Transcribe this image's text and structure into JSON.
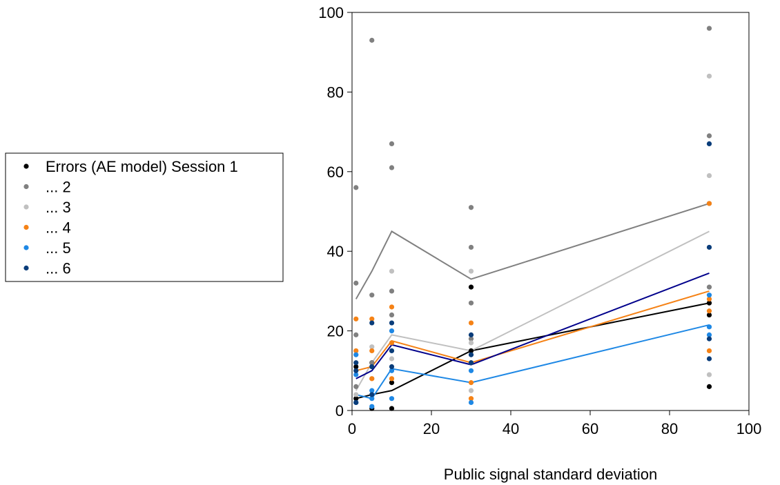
{
  "chart_data": {
    "type": "scatter",
    "title": "",
    "xlabel": "Public signal standard deviation",
    "ylabel": "",
    "xlim": [
      0,
      100
    ],
    "ylim": [
      0,
      100
    ],
    "x_ticks": [
      0,
      20,
      40,
      60,
      80,
      100
    ],
    "y_ticks": [
      0,
      20,
      40,
      60,
      80,
      100
    ],
    "grid": false,
    "legend_position": "left",
    "legend": [
      "Errors (AE model) Session 1",
      "... 2",
      "... 3",
      "... 4",
      "... 5",
      "... 6"
    ],
    "series": [
      {
        "name": "Errors (AE model) Session 1",
        "color": "#000000",
        "line": {
          "x": [
            1,
            5,
            10,
            30,
            90
          ],
          "y": [
            3,
            4,
            5,
            15,
            27
          ]
        },
        "points": [
          [
            1,
            3
          ],
          [
            1,
            11
          ],
          [
            5,
            0.5
          ],
          [
            5,
            12
          ],
          [
            10,
            0.5
          ],
          [
            10,
            7
          ],
          [
            30,
            15
          ],
          [
            30,
            31
          ],
          [
            90,
            6
          ],
          [
            90,
            24
          ],
          [
            90,
            27
          ]
        ]
      },
      {
        "name": "... 2",
        "color": "#808080",
        "line": {
          "x": [
            1,
            5,
            10,
            30,
            90
          ],
          "y": [
            28,
            35,
            45,
            33,
            52
          ]
        },
        "points": [
          [
            1,
            56
          ],
          [
            1,
            32
          ],
          [
            1,
            19
          ],
          [
            1,
            6
          ],
          [
            5,
            93
          ],
          [
            5,
            29
          ],
          [
            5,
            12
          ],
          [
            10,
            67
          ],
          [
            10,
            61
          ],
          [
            10,
            30
          ],
          [
            10,
            24
          ],
          [
            30,
            51
          ],
          [
            30,
            41
          ],
          [
            30,
            27
          ],
          [
            30,
            18
          ],
          [
            90,
            96
          ],
          [
            90,
            69
          ],
          [
            90,
            52
          ],
          [
            90,
            31
          ]
        ]
      },
      {
        "name": "... 3",
        "color": "#c0c0c0",
        "line": {
          "x": [
            1,
            5,
            10,
            30,
            90
          ],
          "y": [
            5,
            12,
            19,
            15,
            45
          ]
        },
        "points": [
          [
            1,
            4
          ],
          [
            5,
            16
          ],
          [
            5,
            8
          ],
          [
            10,
            35
          ],
          [
            10,
            13
          ],
          [
            30,
            35
          ],
          [
            30,
            17
          ],
          [
            30,
            5
          ],
          [
            90,
            84
          ],
          [
            90,
            59
          ],
          [
            90,
            9
          ]
        ]
      },
      {
        "name": "... 4",
        "color": "#f58216",
        "line": {
          "x": [
            1,
            5,
            10,
            30,
            90
          ],
          "y": [
            10,
            11,
            17.5,
            12,
            30
          ]
        },
        "points": [
          [
            1,
            23
          ],
          [
            1,
            15
          ],
          [
            5,
            23
          ],
          [
            5,
            15
          ],
          [
            5,
            8
          ],
          [
            10,
            26
          ],
          [
            10,
            17
          ],
          [
            10,
            8
          ],
          [
            30,
            22
          ],
          [
            30,
            12
          ],
          [
            30,
            7
          ],
          [
            30,
            3
          ],
          [
            90,
            52
          ],
          [
            90,
            28
          ],
          [
            90,
            25
          ],
          [
            90,
            15
          ]
        ]
      },
      {
        "name": "... 5",
        "color": "#1e88e5",
        "line": {
          "x": [
            1,
            5,
            10,
            30,
            90
          ],
          "y": [
            4,
            3,
            10.5,
            7,
            21.5
          ]
        },
        "points": [
          [
            1,
            14
          ],
          [
            1,
            9
          ],
          [
            1,
            2
          ],
          [
            5,
            5
          ],
          [
            5,
            3
          ],
          [
            5,
            1
          ],
          [
            10,
            20
          ],
          [
            10,
            10
          ],
          [
            10,
            3
          ],
          [
            30,
            10
          ],
          [
            30,
            2
          ],
          [
            90,
            29
          ],
          [
            90,
            21
          ],
          [
            90,
            19
          ]
        ]
      },
      {
        "name": "... 6",
        "color": "#0a3d7a",
        "line": {
          "x": [
            1,
            5,
            10,
            30,
            90
          ],
          "y": [
            8,
            10,
            16.5,
            11.5,
            34.5
          ]
        },
        "points": [
          [
            1,
            12
          ],
          [
            1,
            10
          ],
          [
            1,
            2
          ],
          [
            5,
            22
          ],
          [
            5,
            11
          ],
          [
            5,
            4
          ],
          [
            10,
            22
          ],
          [
            10,
            15
          ],
          [
            10,
            11
          ],
          [
            30,
            19
          ],
          [
            30,
            14
          ],
          [
            30,
            12
          ],
          [
            90,
            67
          ],
          [
            90,
            41
          ],
          [
            90,
            18
          ],
          [
            90,
            13
          ]
        ]
      }
    ],
    "mean_line_colors": [
      "#000000",
      "#808080",
      "#c0c0c0",
      "#f58216",
      "#1e88e5",
      "#00008b"
    ]
  }
}
